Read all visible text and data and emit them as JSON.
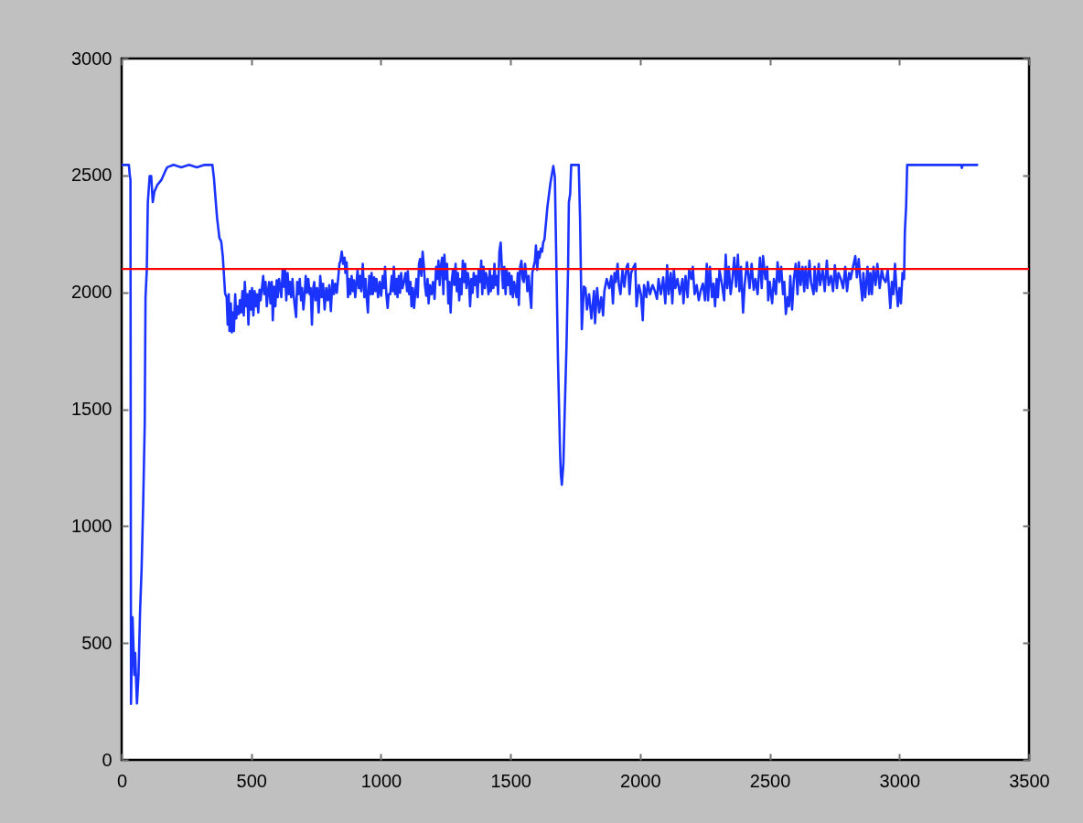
{
  "chart_data": {
    "type": "line",
    "x": [
      0,
      28,
      31,
      34,
      36,
      42,
      49,
      52,
      59,
      65,
      71,
      77,
      83,
      89,
      92,
      97,
      101,
      108,
      114,
      120,
      126,
      138,
      153,
      169,
      176,
      200,
      230,
      260,
      290,
      320,
      350,
      356,
      362,
      368,
      377,
      384,
      390,
      399,
      405,
      409,
      413,
      416,
      421,
      425,
      428,
      433,
      438,
      442,
      447,
      452,
      456,
      461,
      466,
      471,
      475,
      480,
      485,
      489,
      494,
      499,
      503,
      508,
      513,
      518,
      522,
      527,
      532,
      536,
      541,
      546,
      550,
      555,
      560,
      565,
      569,
      574,
      579,
      583,
      588,
      593,
      598,
      602,
      607,
      612,
      616,
      621,
      626,
      630,
      635,
      640,
      645,
      649,
      654,
      659,
      663,
      668,
      673,
      677,
      682,
      687,
      692,
      696,
      701,
      706,
      710,
      715,
      720,
      725,
      729,
      734,
      739,
      743,
      748,
      754,
      760,
      766,
      772,
      777,
      783,
      789,
      795,
      801,
      807,
      813,
      819,
      824,
      830,
      836,
      840,
      844,
      849,
      854,
      860,
      863,
      868,
      873,
      877,
      882,
      887,
      892,
      896,
      901,
      906,
      910,
      915,
      920,
      924,
      930,
      936,
      941,
      946,
      950,
      955,
      960,
      964,
      969,
      974,
      979,
      983,
      989,
      995,
      1001,
      1007,
      1012,
      1016,
      1021,
      1026,
      1030,
      1036,
      1042,
      1046,
      1050,
      1055,
      1060,
      1064,
      1069,
      1074,
      1078,
      1083,
      1089,
      1095,
      1101,
      1104,
      1109,
      1114,
      1118,
      1123,
      1128,
      1133,
      1137,
      1142,
      1147,
      1151,
      1156,
      1161,
      1166,
      1170,
      1175,
      1180,
      1184,
      1189,
      1195,
      1201,
      1207,
      1213,
      1217,
      1222,
      1227,
      1231,
      1236,
      1241,
      1245,
      1250,
      1255,
      1260,
      1264,
      1269,
      1274,
      1278,
      1283,
      1288,
      1293,
      1297,
      1302,
      1307,
      1311,
      1316,
      1321,
      1325,
      1330,
      1335,
      1340,
      1344,
      1349,
      1354,
      1358,
      1363,
      1368,
      1373,
      1377,
      1382,
      1387,
      1391,
      1396,
      1401,
      1405,
      1410,
      1415,
      1420,
      1424,
      1429,
      1434,
      1438,
      1443,
      1448,
      1452,
      1457,
      1462,
      1467,
      1471,
      1476,
      1481,
      1485,
      1490,
      1495,
      1500,
      1504,
      1509,
      1514,
      1518,
      1523,
      1528,
      1532,
      1537,
      1542,
      1547,
      1551,
      1556,
      1561,
      1565,
      1570,
      1575,
      1580,
      1584,
      1589,
      1594,
      1598,
      1603,
      1608,
      1612,
      1617,
      1622,
      1626,
      1631,
      1642,
      1654,
      1665,
      1671,
      1677,
      1683,
      1691,
      1694,
      1698,
      1704,
      1709,
      1716,
      1722,
      1725,
      1730,
      1734,
      1763,
      1768,
      1773,
      1775,
      1783,
      1789,
      1795,
      1803,
      1812,
      1822,
      1826,
      1834,
      1842,
      1850,
      1857,
      1862,
      1871,
      1881,
      1889,
      1895,
      1901,
      1906,
      1913,
      1918,
      1924,
      1932,
      1939,
      1948,
      1953,
      1959,
      1965,
      1975,
      1981,
      1986,
      1995,
      2003,
      2010,
      2015,
      2024,
      2030,
      2038,
      2048,
      2057,
      2065,
      2071,
      2080,
      2089,
      2097,
      2104,
      2110,
      2118,
      2124,
      2130,
      2136,
      2144,
      2153,
      2163,
      2167,
      2175,
      2183,
      2189,
      2198,
      2203,
      2210,
      2218,
      2226,
      2233,
      2242,
      2250,
      2257,
      2262,
      2269,
      2277,
      2283,
      2289,
      2295,
      2300,
      2306,
      2316,
      2324,
      2330,
      2336,
      2342,
      2349,
      2356,
      2363,
      2370,
      2377,
      2383,
      2389,
      2397,
      2403,
      2412,
      2422,
      2430,
      2438,
      2445,
      2453,
      2462,
      2469,
      2474,
      2483,
      2490,
      2494,
      2500,
      2509,
      2516,
      2524,
      2530,
      2537,
      2544,
      2551,
      2556,
      2562,
      2569,
      2574,
      2579,
      2586,
      2593,
      2600,
      2607,
      2612,
      2619,
      2626,
      2633,
      2638,
      2645,
      2653,
      2659,
      2669,
      2673,
      2680,
      2689,
      2694,
      2704,
      2712,
      2720,
      2727,
      2736,
      2744,
      2751,
      2759,
      2765,
      2774,
      2783,
      2791,
      2798,
      2806,
      2812,
      2821,
      2830,
      2836,
      2843,
      2850,
      2857,
      2861,
      2868,
      2877,
      2883,
      2888,
      2894,
      2900,
      2908,
      2915,
      2924,
      2932,
      2939,
      2947,
      2955,
      2965,
      2971,
      2977,
      2983,
      2988,
      2994,
      3000,
      3006,
      3012,
      3018,
      3021,
      3026,
      3030,
      3238,
      3241,
      3244,
      3300
    ],
    "series": [
      {
        "color": "#1a33ff",
        "values": [
          2545,
          2545,
          2505,
          2480,
          240,
          610,
          364,
          457,
          242,
          364,
          634,
          820,
          1095,
          1435,
          1979,
          2096,
          2386,
          2497,
          2497,
          2386,
          2430,
          2460,
          2480,
          2520,
          2535,
          2545,
          2535,
          2545,
          2535,
          2545,
          2545,
          2488,
          2403,
          2319,
          2233,
          2217,
          2156,
          1995,
          1979,
          1862,
          1992,
          1835,
          1953,
          1829,
          1914,
          1835,
          1992,
          1888,
          1940,
          1907,
          1966,
          1914,
          2005,
          1901,
          2044,
          1940,
          1992,
          1862,
          2005,
          1927,
          2018,
          1901,
          2005,
          1940,
          1992,
          1914,
          2011,
          1966,
          2018,
          2070,
          1992,
          2044,
          1940,
          2011,
          2044,
          1953,
          2044,
          1881,
          2024,
          1940,
          2051,
          1979,
          2057,
          2018,
          1979,
          2096,
          2024,
          2096,
          1966,
          2083,
          1992,
          2044,
          1979,
          2057,
          1992,
          1940,
          1894,
          2044,
          1992,
          2057,
          1966,
          2018,
          1927,
          1992,
          2070,
          1998,
          2057,
          1992,
          2018,
          1862,
          2018,
          2044,
          1966,
          2018,
          1914,
          2070,
          1979,
          2037,
          1927,
          2018,
          1966,
          2031,
          1920,
          2051,
          1992,
          2037,
          1998,
          2070,
          2122,
          2135,
          2174,
          2122,
          2148,
          2083,
          2129,
          1979,
          2057,
          1992,
          2070,
          2005,
          2051,
          1979,
          2044,
          2096,
          2018,
          2070,
          2005,
          2122,
          1979,
          2057,
          1966,
          1914,
          2070,
          1992,
          2083,
          1992,
          2064,
          2005,
          2057,
          1979,
          2044,
          1985,
          2070,
          2018,
          2109,
          1992,
          1933,
          1992,
          1992,
          2070,
          2005,
          2109,
          1992,
          2057,
          1979,
          2070,
          1998,
          2083,
          2018,
          2044,
          2083,
          2005,
          2090,
          1992,
          2044,
          1940,
          2018,
          1933,
          2005,
          2057,
          1979,
          2122,
          2142,
          2070,
          2174,
          2109,
          2031,
          1985,
          2057,
          1953,
          2031,
          1992,
          2044,
          1972,
          2109,
          2057,
          2135,
          2031,
          2109,
          2148,
          1992,
          2161,
          2057,
          2122,
          1953,
          2044,
          1914,
          2057,
          2096,
          2031,
          2122,
          2005,
          2083,
          1966,
          2057,
          1992,
          2135,
          2044,
          2122,
          2018,
          2083,
          2044,
          1940,
          2057,
          1998,
          2083,
          2031,
          2070,
          1979,
          2096,
          2044,
          2135,
          1992,
          2109,
          2018,
          2083,
          2057,
          1992,
          2096,
          2005,
          2070,
          2018,
          2122,
          2031,
          2070,
          1992,
          2174,
          2213,
          2096,
          2018,
          2109,
          1992,
          2096,
          2031,
          2083,
          1992,
          2070,
          1979,
          2044,
          2018,
          1979,
          2083,
          1946,
          2109,
          2135,
          2057,
          2044,
          2122,
          2070,
          2005,
          2070,
          1992,
          1933,
          2083,
          2109,
          2135,
          2200,
          2096,
          2174,
          2148,
          2187,
          2174,
          2213,
          2227,
          2363,
          2468,
          2540,
          2494,
          2104,
          1712,
          1321,
          1224,
          1177,
          1268,
          1490,
          1777,
          2103,
          2385,
          2420,
          2545,
          2545,
          2324,
          1972,
          1842,
          2025,
          2018,
          1927,
          1992,
          1888,
          2005,
          1868,
          2018,
          1914,
          1979,
          1901,
          2005,
          2057,
          2018,
          2070,
          1953,
          2083,
          2044,
          2122,
          2031,
          1992,
          2096,
          2024,
          2109,
          2122,
          1992,
          2083,
          2109,
          2122,
          1940,
          2031,
          1992,
          1881,
          2031,
          1979,
          2044,
          1992,
          2031,
          2005,
          1972,
          2057,
          1992,
          2064,
          1953,
          2116,
          1992,
          2083,
          1953,
          2096,
          2018,
          2057,
          1992,
          2057,
          1953,
          2070,
          1979,
          2096,
          2057,
          2109,
          1992,
          2031,
          1966,
          2005,
          2037,
          1966,
          2122,
          1966,
          2109,
          1979,
          2037,
          1940,
          2057,
          1979,
          2096,
          2031,
          1966,
          2161,
          2018,
          2109,
          1992,
          2057,
          2148,
          2024,
          2161,
          2005,
          2109,
          1914,
          2031,
          2129,
          2018,
          2122,
          2011,
          2057,
          1992,
          2148,
          2018,
          2155,
          2057,
          2109,
          1966,
          2044,
          1953,
          2057,
          1992,
          2129,
          2044,
          2109,
          1992,
          2044,
          1907,
          1979,
          1940,
          2070,
          1927,
          2057,
          2122,
          1992,
          2129,
          2031,
          2109,
          2005,
          2109,
          2018,
          2135,
          2044,
          1992,
          2109,
          2005,
          2122,
          2031,
          2096,
          2005,
          2135,
          2031,
          2070,
          2005,
          2116,
          2018,
          2083,
          2057,
          2018,
          2109,
          2005,
          2083,
          2057,
          2109,
          2155,
          2064,
          2142,
          2044,
          1966,
          2083,
          1979,
          2109,
          1992,
          2083,
          1992,
          2109,
          2031,
          2122,
          2018,
          2096,
          2057,
          2044,
          2096,
          1933,
          2044,
          1992,
          2122,
          2024,
          1940,
          2018,
          1953,
          2083,
          2057,
          2259,
          2370,
          2545,
          2545,
          2532,
          2545,
          2545
        ]
      }
    ],
    "xlim": [
      0,
      3500
    ],
    "ylim": [
      0,
      3000
    ],
    "xticks": [
      0,
      500,
      1000,
      1500,
      2000,
      2500,
      3000,
      3500
    ],
    "yticks": [
      0,
      500,
      1000,
      1500,
      2000,
      2500,
      3000
    ],
    "ref_lines": [
      {
        "axis": "y",
        "value": 2100,
        "color": "#ff0000"
      }
    ],
    "line_style": "solid"
  }
}
